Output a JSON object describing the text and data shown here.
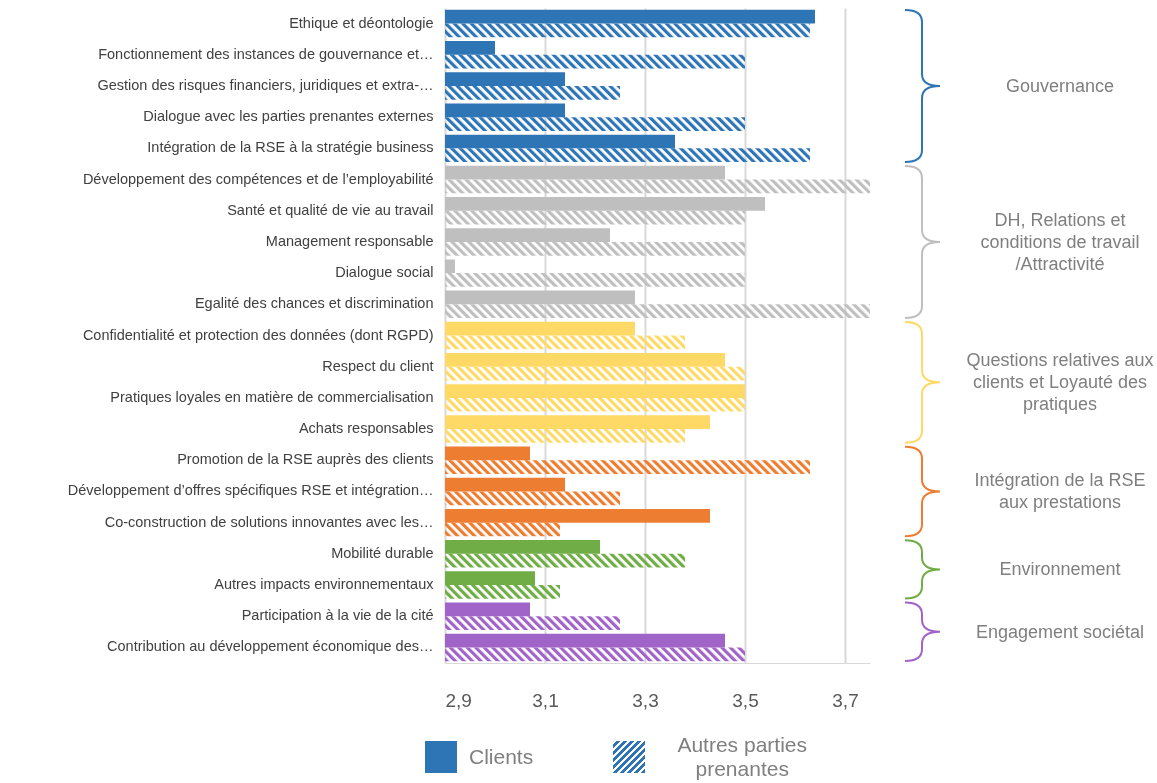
{
  "chart_data": {
    "type": "bar",
    "orientation": "horizontal",
    "categories": [
      "Ethique et déontologie",
      "Fonctionnement des instances de gouvernance et…",
      "Gestion des risques financiers, juridiques et extra-…",
      "Dialogue avec les parties prenantes externes",
      "Intégration de la RSE à la stratégie business",
      "Développement des compétences et de l’employabilité",
      "Santé et qualité de vie au travail",
      "Management responsable",
      "Dialogue social",
      "Egalité des chances et discrimination",
      "Confidentialité et protection des données (dont RGPD)",
      "Respect du client",
      "Pratiques loyales en matière de commercialisation",
      "Achats responsables",
      "Promotion de la RSE auprès des clients",
      "Développement d’offres spécifiques RSE et intégration…",
      "Co-construction de solutions innovantes avec les…",
      "Mobilité durable",
      "Autres impacts environnementaux",
      "Participation à la vie de la cité",
      "Contribution au développement économique des…"
    ],
    "series": [
      {
        "name": "Clients",
        "color": "#2e75b6",
        "colors": [
          "#2e75b6",
          "#2e75b6",
          "#2e75b6",
          "#2e75b6",
          "#2e75b6",
          "#bfbfbf",
          "#bfbfbf",
          "#bfbfbf",
          "#bfbfbf",
          "#bfbfbf",
          "#ffd966",
          "#ffd966",
          "#ffd966",
          "#ffd966",
          "#ed7d31",
          "#ed7d31",
          "#ed7d31",
          "#70ad47",
          "#70ad47",
          "#a064c8",
          "#a064c8"
        ],
        "values": [
          3.64,
          3.0,
          3.14,
          3.14,
          3.36,
          3.46,
          3.54,
          3.23,
          2.92,
          3.28,
          3.28,
          3.46,
          3.5,
          3.43,
          3.07,
          3.14,
          3.43,
          3.21,
          3.08,
          3.07,
          3.46
        ]
      },
      {
        "name": "Autres parties prenantes",
        "color": "#2e75b6",
        "colors": [
          "#2e75b6",
          "#2e75b6",
          "#2e75b6",
          "#2e75b6",
          "#2e75b6",
          "#bfbfbf",
          "#bfbfbf",
          "#bfbfbf",
          "#bfbfbf",
          "#bfbfbf",
          "#ffd966",
          "#ffd966",
          "#ffd966",
          "#ffd966",
          "#ed7d31",
          "#ed7d31",
          "#ed7d31",
          "#70ad47",
          "#70ad47",
          "#a064c8",
          "#a064c8"
        ],
        "values": [
          3.63,
          3.5,
          3.25,
          3.5,
          3.63,
          3.75,
          3.5,
          3.5,
          3.5,
          3.75,
          3.38,
          3.5,
          3.5,
          3.38,
          3.63,
          3.25,
          3.13,
          3.38,
          3.13,
          3.25,
          3.5
        ]
      }
    ],
    "xlim": [
      2.9,
      3.75
    ],
    "xticks": [
      {
        "value": 2.9,
        "label": "2,9"
      },
      {
        "value": 3.1,
        "label": "3,1"
      },
      {
        "value": 3.3,
        "label": "3,3"
      },
      {
        "value": 3.5,
        "label": "3,5"
      },
      {
        "value": 3.7,
        "label": "3,7"
      }
    ],
    "grid": "x",
    "legend": "bottom",
    "annotations": [
      "Gouvernance",
      "DH, Relations et conditions de travail /Attractivité",
      "Questions relatives aux clients et Loyauté des pratiques",
      "Intégration de la RSE aux prestations",
      "Environnement",
      "Engagement sociétal"
    ]
  }
}
